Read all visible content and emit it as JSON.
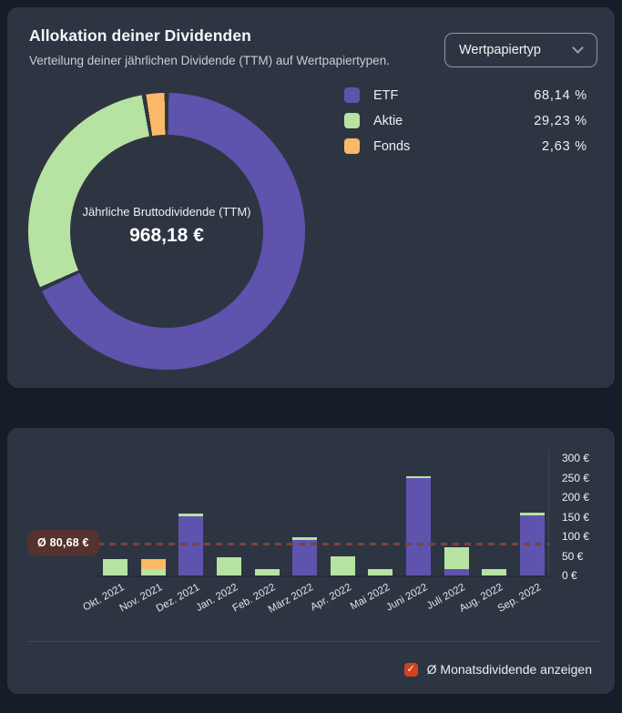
{
  "colors": {
    "page_bg": "#161c28",
    "card_bg": "#2e3542",
    "etf_purple": "#5e53ad",
    "aktie_green": "#b7e3a2",
    "fonds_orange": "#fab969",
    "average_line": "#7d4239",
    "badge_bg": "#55322e",
    "checkbox": "#d2431d",
    "divider": "#3f4754"
  },
  "icons": {
    "chevron_down": "css-chevron-down",
    "checkbox_check": "✓"
  },
  "allocation_card": {
    "title": "Allokation deiner Dividenden",
    "subtitle": "Verteilung deiner jährlichen Dividende (TTM) auf Wertpapiertypen.",
    "dropdown_value": "Wertpapiertyp",
    "donut_center_label": "Jährliche Bruttodividende (TTM)",
    "donut_center_value": "968,18 €",
    "legend": [
      {
        "label": "ETF",
        "value": "68,14 %",
        "color": "#5e53ad"
      },
      {
        "label": "Aktie",
        "value": "29,23 %",
        "color": "#b7e3a2"
      },
      {
        "label": "Fonds",
        "value": "2,63 %",
        "color": "#fab969"
      }
    ]
  },
  "monthly_card": {
    "average_badge": "Ø 80,68 €",
    "checkbox_label": "Ø Monatsdividende anzeigen",
    "checkbox_checked": true
  },
  "chart_data": [
    {
      "type": "pie",
      "subtype": "donut",
      "title": "Allokation deiner Dividenden",
      "labels": [
        "ETF",
        "Aktie",
        "Fonds"
      ],
      "values": [
        68.14,
        29.23,
        2.63
      ],
      "unit": "%",
      "colors": [
        "#5e53ad",
        "#b7e3a2",
        "#fab969"
      ],
      "center_label": "Jährliche Bruttodividende (TTM)",
      "center_value": "968,18 €",
      "legend_position": "right"
    },
    {
      "type": "bar",
      "stacked": true,
      "categories": [
        "Okt. 2021",
        "Nov. 2021",
        "Dez. 2021",
        "Jan. 2022",
        "Feb. 2022",
        "März 2022",
        "Apr. 2022",
        "Mai 2022",
        "Juni 2022",
        "Juli 2022",
        "Aug. 2022",
        "Sep. 2022"
      ],
      "series": [
        {
          "name": "ETF",
          "color": "#5e53ad",
          "values": [
            0,
            0,
            150,
            0,
            0,
            90,
            0,
            0,
            248,
            17,
            0,
            153
          ]
        },
        {
          "name": "Aktie",
          "color": "#b7e3a2",
          "values": [
            42,
            15.5,
            8,
            47,
            16,
            8,
            48,
            17,
            5,
            54,
            17,
            7
          ]
        },
        {
          "name": "Fonds",
          "color": "#fab969",
          "values": [
            0,
            25.5,
            0,
            0,
            0,
            0,
            0,
            0,
            0,
            0,
            0,
            0
          ]
        }
      ],
      "ylim": [
        0,
        300
      ],
      "yticks": [
        {
          "value": 300,
          "label": "300 €"
        },
        {
          "value": 250,
          "label": "250 €"
        },
        {
          "value": 200,
          "label": "200 €"
        },
        {
          "value": 150,
          "label": "150 €"
        },
        {
          "value": 100,
          "label": "100 €"
        },
        {
          "value": 50,
          "label": "50 €"
        },
        {
          "value": 0,
          "label": "0 €"
        }
      ],
      "average_line": {
        "value": 80.68,
        "label": "Ø 80,68 €",
        "color": "#7d4239",
        "style": "dashed"
      },
      "grid": false,
      "legend_position": "none",
      "y_axis_side": "right",
      "unit": "€"
    }
  ]
}
